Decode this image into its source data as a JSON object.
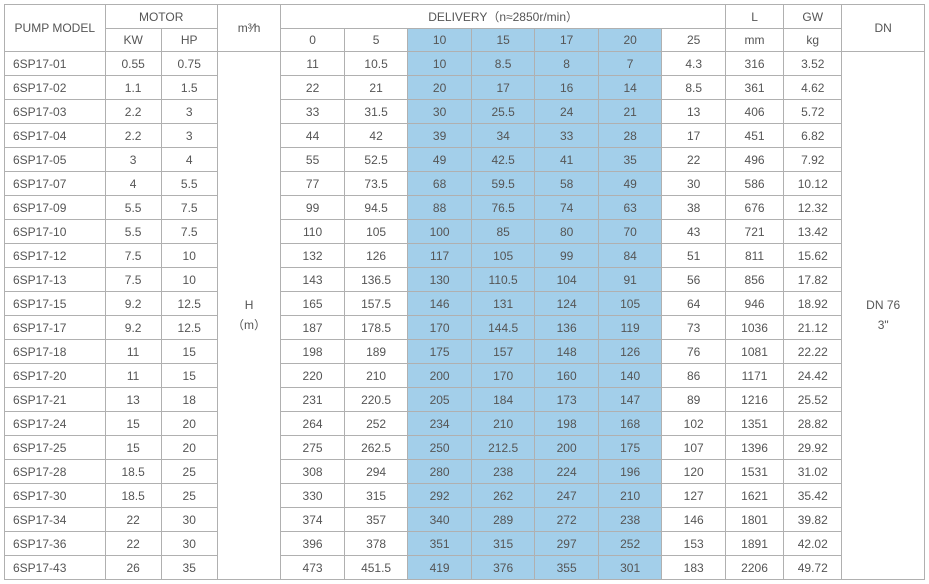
{
  "header": {
    "pump_model": "PUMP MODEL",
    "motor": "MOTOR",
    "kw": "KW",
    "hp": "HP",
    "m3h": "m³⁄h",
    "delivery": "DELIVERY（n≈2850r/min）",
    "d0": "0",
    "d5": "5",
    "d10": "10",
    "d15": "15",
    "d17": "17",
    "d20": "20",
    "d25": "25",
    "L": "L",
    "L_unit": "mm",
    "GW": "GW",
    "GW_unit": "kg",
    "DN": "DN",
    "H": "H",
    "H_unit": "（m）"
  },
  "dn_value": "DN 76",
  "dn_sub": "3\"",
  "highlight_color": "#a3cfea",
  "rows": [
    {
      "model": "6SP17-01",
      "kw": "0.55",
      "hp": "0.75",
      "d": [
        "11",
        "10.5",
        "10",
        "8.5",
        "8",
        "7",
        "4.3"
      ],
      "L": "316",
      "GW": "3.52"
    },
    {
      "model": "6SP17-02",
      "kw": "1.1",
      "hp": "1.5",
      "d": [
        "22",
        "21",
        "20",
        "17",
        "16",
        "14",
        "8.5"
      ],
      "L": "361",
      "GW": "4.62"
    },
    {
      "model": "6SP17-03",
      "kw": "2.2",
      "hp": "3",
      "d": [
        "33",
        "31.5",
        "30",
        "25.5",
        "24",
        "21",
        "13"
      ],
      "L": "406",
      "GW": "5.72"
    },
    {
      "model": "6SP17-04",
      "kw": "2.2",
      "hp": "3",
      "d": [
        "44",
        "42",
        "39",
        "34",
        "33",
        "28",
        "17"
      ],
      "L": "451",
      "GW": "6.82"
    },
    {
      "model": "6SP17-05",
      "kw": "3",
      "hp": "4",
      "d": [
        "55",
        "52.5",
        "49",
        "42.5",
        "41",
        "35",
        "22"
      ],
      "L": "496",
      "GW": "7.92"
    },
    {
      "model": "6SP17-07",
      "kw": "4",
      "hp": "5.5",
      "d": [
        "77",
        "73.5",
        "68",
        "59.5",
        "58",
        "49",
        "30"
      ],
      "L": "586",
      "GW": "10.12"
    },
    {
      "model": "6SP17-09",
      "kw": "5.5",
      "hp": "7.5",
      "d": [
        "99",
        "94.5",
        "88",
        "76.5",
        "74",
        "63",
        "38"
      ],
      "L": "676",
      "GW": "12.32"
    },
    {
      "model": "6SP17-10",
      "kw": "5.5",
      "hp": "7.5",
      "d": [
        "110",
        "105",
        "100",
        "85",
        "80",
        "70",
        "43"
      ],
      "L": "721",
      "GW": "13.42"
    },
    {
      "model": "6SP17-12",
      "kw": "7.5",
      "hp": "10",
      "d": [
        "132",
        "126",
        "117",
        "105",
        "99",
        "84",
        "51"
      ],
      "L": "811",
      "GW": "15.62"
    },
    {
      "model": "6SP17-13",
      "kw": "7.5",
      "hp": "10",
      "d": [
        "143",
        "136.5",
        "130",
        "110.5",
        "104",
        "91",
        "56"
      ],
      "L": "856",
      "GW": "17.82"
    },
    {
      "model": "6SP17-15",
      "kw": "9.2",
      "hp": "12.5",
      "d": [
        "165",
        "157.5",
        "146",
        "131",
        "124",
        "105",
        "64"
      ],
      "L": "946",
      "GW": "18.92"
    },
    {
      "model": "6SP17-17",
      "kw": "9.2",
      "hp": "12.5",
      "d": [
        "187",
        "178.5",
        "170",
        "144.5",
        "136",
        "119",
        "73"
      ],
      "L": "1036",
      "GW": "21.12"
    },
    {
      "model": "6SP17-18",
      "kw": "11",
      "hp": "15",
      "d": [
        "198",
        "189",
        "175",
        "157",
        "148",
        "126",
        "76"
      ],
      "L": "1081",
      "GW": "22.22"
    },
    {
      "model": "6SP17-20",
      "kw": "11",
      "hp": "15",
      "d": [
        "220",
        "210",
        "200",
        "170",
        "160",
        "140",
        "86"
      ],
      "L": "1171",
      "GW": "24.42"
    },
    {
      "model": "6SP17-21",
      "kw": "13",
      "hp": "18",
      "d": [
        "231",
        "220.5",
        "205",
        "184",
        "173",
        "147",
        "89"
      ],
      "L": "1216",
      "GW": "25.52"
    },
    {
      "model": "6SP17-24",
      "kw": "15",
      "hp": "20",
      "d": [
        "264",
        "252",
        "234",
        "210",
        "198",
        "168",
        "102"
      ],
      "L": "1351",
      "GW": "28.82"
    },
    {
      "model": "6SP17-25",
      "kw": "15",
      "hp": "20",
      "d": [
        "275",
        "262.5",
        "250",
        "212.5",
        "200",
        "175",
        "107"
      ],
      "L": "1396",
      "GW": "29.92"
    },
    {
      "model": "6SP17-28",
      "kw": "18.5",
      "hp": "25",
      "d": [
        "308",
        "294",
        "280",
        "238",
        "224",
        "196",
        "120"
      ],
      "L": "1531",
      "GW": "31.02"
    },
    {
      "model": "6SP17-30",
      "kw": "18.5",
      "hp": "25",
      "d": [
        "330",
        "315",
        "292",
        "262",
        "247",
        "210",
        "127"
      ],
      "L": "1621",
      "GW": "35.42"
    },
    {
      "model": "6SP17-34",
      "kw": "22",
      "hp": "30",
      "d": [
        "374",
        "357",
        "340",
        "289",
        "272",
        "238",
        "146"
      ],
      "L": "1801",
      "GW": "39.82"
    },
    {
      "model": "6SP17-36",
      "kw": "22",
      "hp": "30",
      "d": [
        "396",
        "378",
        "351",
        "315",
        "297",
        "252",
        "153"
      ],
      "L": "1891",
      "GW": "42.02"
    },
    {
      "model": "6SP17-43",
      "kw": "26",
      "hp": "35",
      "d": [
        "473",
        "451.5",
        "419",
        "376",
        "355",
        "301",
        "183"
      ],
      "L": "2206",
      "GW": "49.72"
    }
  ]
}
